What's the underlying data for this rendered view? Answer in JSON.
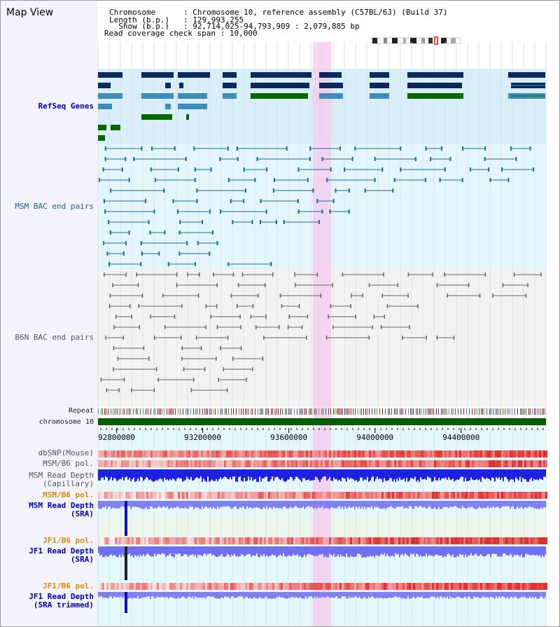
{
  "title": "Map View",
  "header": {
    "chromosome_key": "Chromosome      ",
    "chromosome_val": "Chromosome 10, reference assembly (C57BL/6J) (Build 37)",
    "length_key": "Length (b.p.)   ",
    "length_val": "129,993,255",
    "show_key": "  Show (b.p.)   ",
    "show_val": "92,714,025-94,793,909 : 2,079,885 bp",
    "coverage_key": "Read coverage check span",
    "coverage_val": "10,000"
  },
  "tracks": {
    "refseq": "RefSeq Genes",
    "msm_bac": "MSM BAC end pairs",
    "b6n_bac": "B6N BAC end pairs",
    "repeat": "Repeat",
    "chromosome": "chromosome 10",
    "dbsnp": "dbSNP(Mouse)",
    "msm_b6_pol_1": "MSM/B6 pol.",
    "msm_read_depth_cap_1": "MSM Read Depth",
    "msm_read_depth_cap_2": "(Capillary)",
    "msm_b6_pol_2": "MSM/B6 pol.",
    "msm_read_depth_sra_1": "MSM Read Depth",
    "msm_read_depth_sra_2": "(SRA)",
    "jf1_b6_pol_1": "JF1/B6 pol.",
    "jf1_read_depth_sra_1": "JF1 Read Depth",
    "jf1_read_depth_sra_2": "(SRA)",
    "jf1_b6_pol_2": "JF1/B6 pol.",
    "jf1_read_depth_trim_1": "JF1 Read Depth",
    "jf1_read_depth_trim_2": "(SRA trimmed)"
  },
  "axis": {
    "ticks": [
      "92800000",
      "93200000",
      "93600000",
      "94000000",
      "94400000"
    ],
    "tick_values": [
      92800000,
      93200000,
      93600000,
      94000000,
      94400000
    ],
    "start": 92714025,
    "end": 94793909
  },
  "colors": {
    "refseq_bg": "#d8eef9",
    "msm_bg": "#e2f6fb",
    "b6n_bg": "#f2f2f2",
    "highlight": "#f6c8ec",
    "gene_dark": "#0a2a5e",
    "gene_mid": "#3e8dbb",
    "gene_green": "#006a00",
    "msm_line": "#1a6f99",
    "b6n_line": "#666666",
    "chromosome": "#006000"
  }
}
